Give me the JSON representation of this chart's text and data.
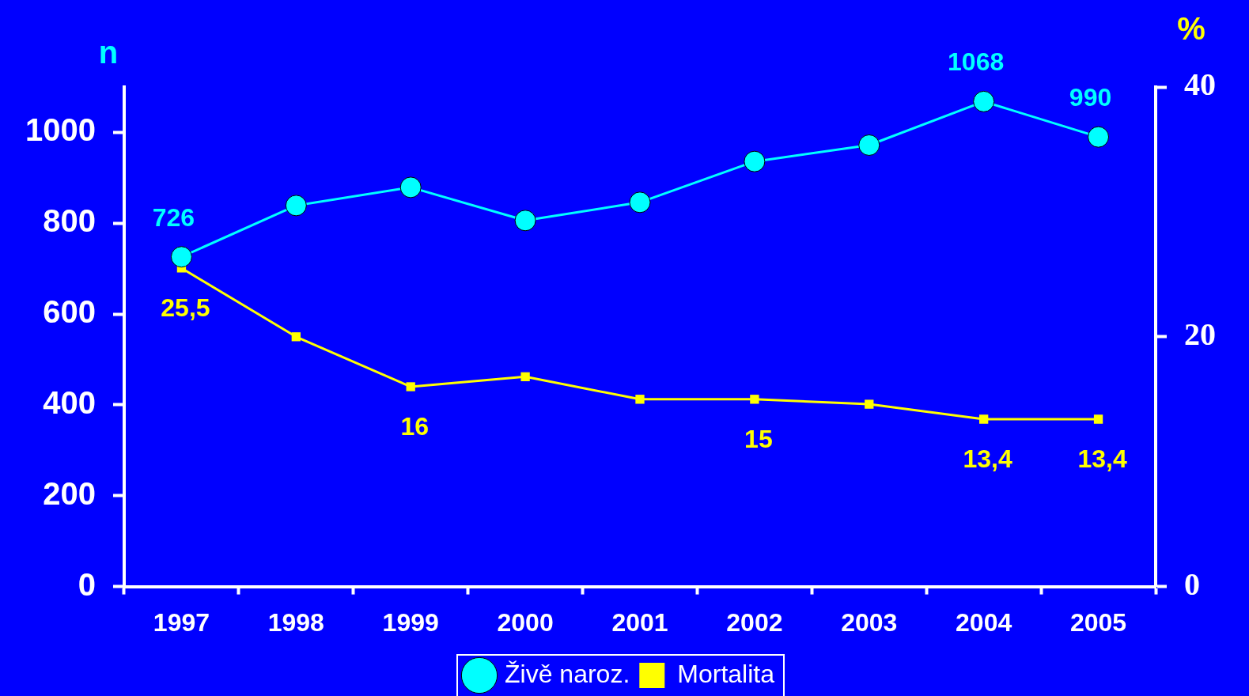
{
  "chart_data": {
    "type": "line",
    "ylabel": "n",
    "y2label": "%",
    "categories": [
      "1997",
      "1998",
      "1999",
      "2000",
      "2001",
      "2002",
      "2003",
      "2004",
      "2005"
    ],
    "series": [
      {
        "name": "Živě naroz.",
        "color": "#00ffff",
        "marker": "circle",
        "values": [
          726,
          839,
          879,
          806,
          846,
          936,
          972,
          1068,
          990
        ],
        "value_labels": [
          "726",
          null,
          null,
          null,
          null,
          null,
          null,
          "1068",
          "990"
        ]
      },
      {
        "name": "Mortalita",
        "color": "#ffff00",
        "marker": "square",
        "axis": "y2",
        "values": [
          25.5,
          20,
          16,
          16.8,
          15,
          15,
          14.6,
          13.4,
          13.4
        ],
        "value_labels": [
          "25,5",
          null,
          "16",
          null,
          null,
          "15",
          null,
          "13,4",
          "13,4"
        ]
      }
    ],
    "ylim": [
      0,
      1100
    ],
    "yticks": [
      0,
      200,
      400,
      600,
      800,
      1000
    ],
    "y2lim": [
      0,
      40
    ],
    "y2ticks": [
      0,
      20,
      40
    ],
    "grid": false,
    "legend": "bottom",
    "line_style": "solid"
  }
}
